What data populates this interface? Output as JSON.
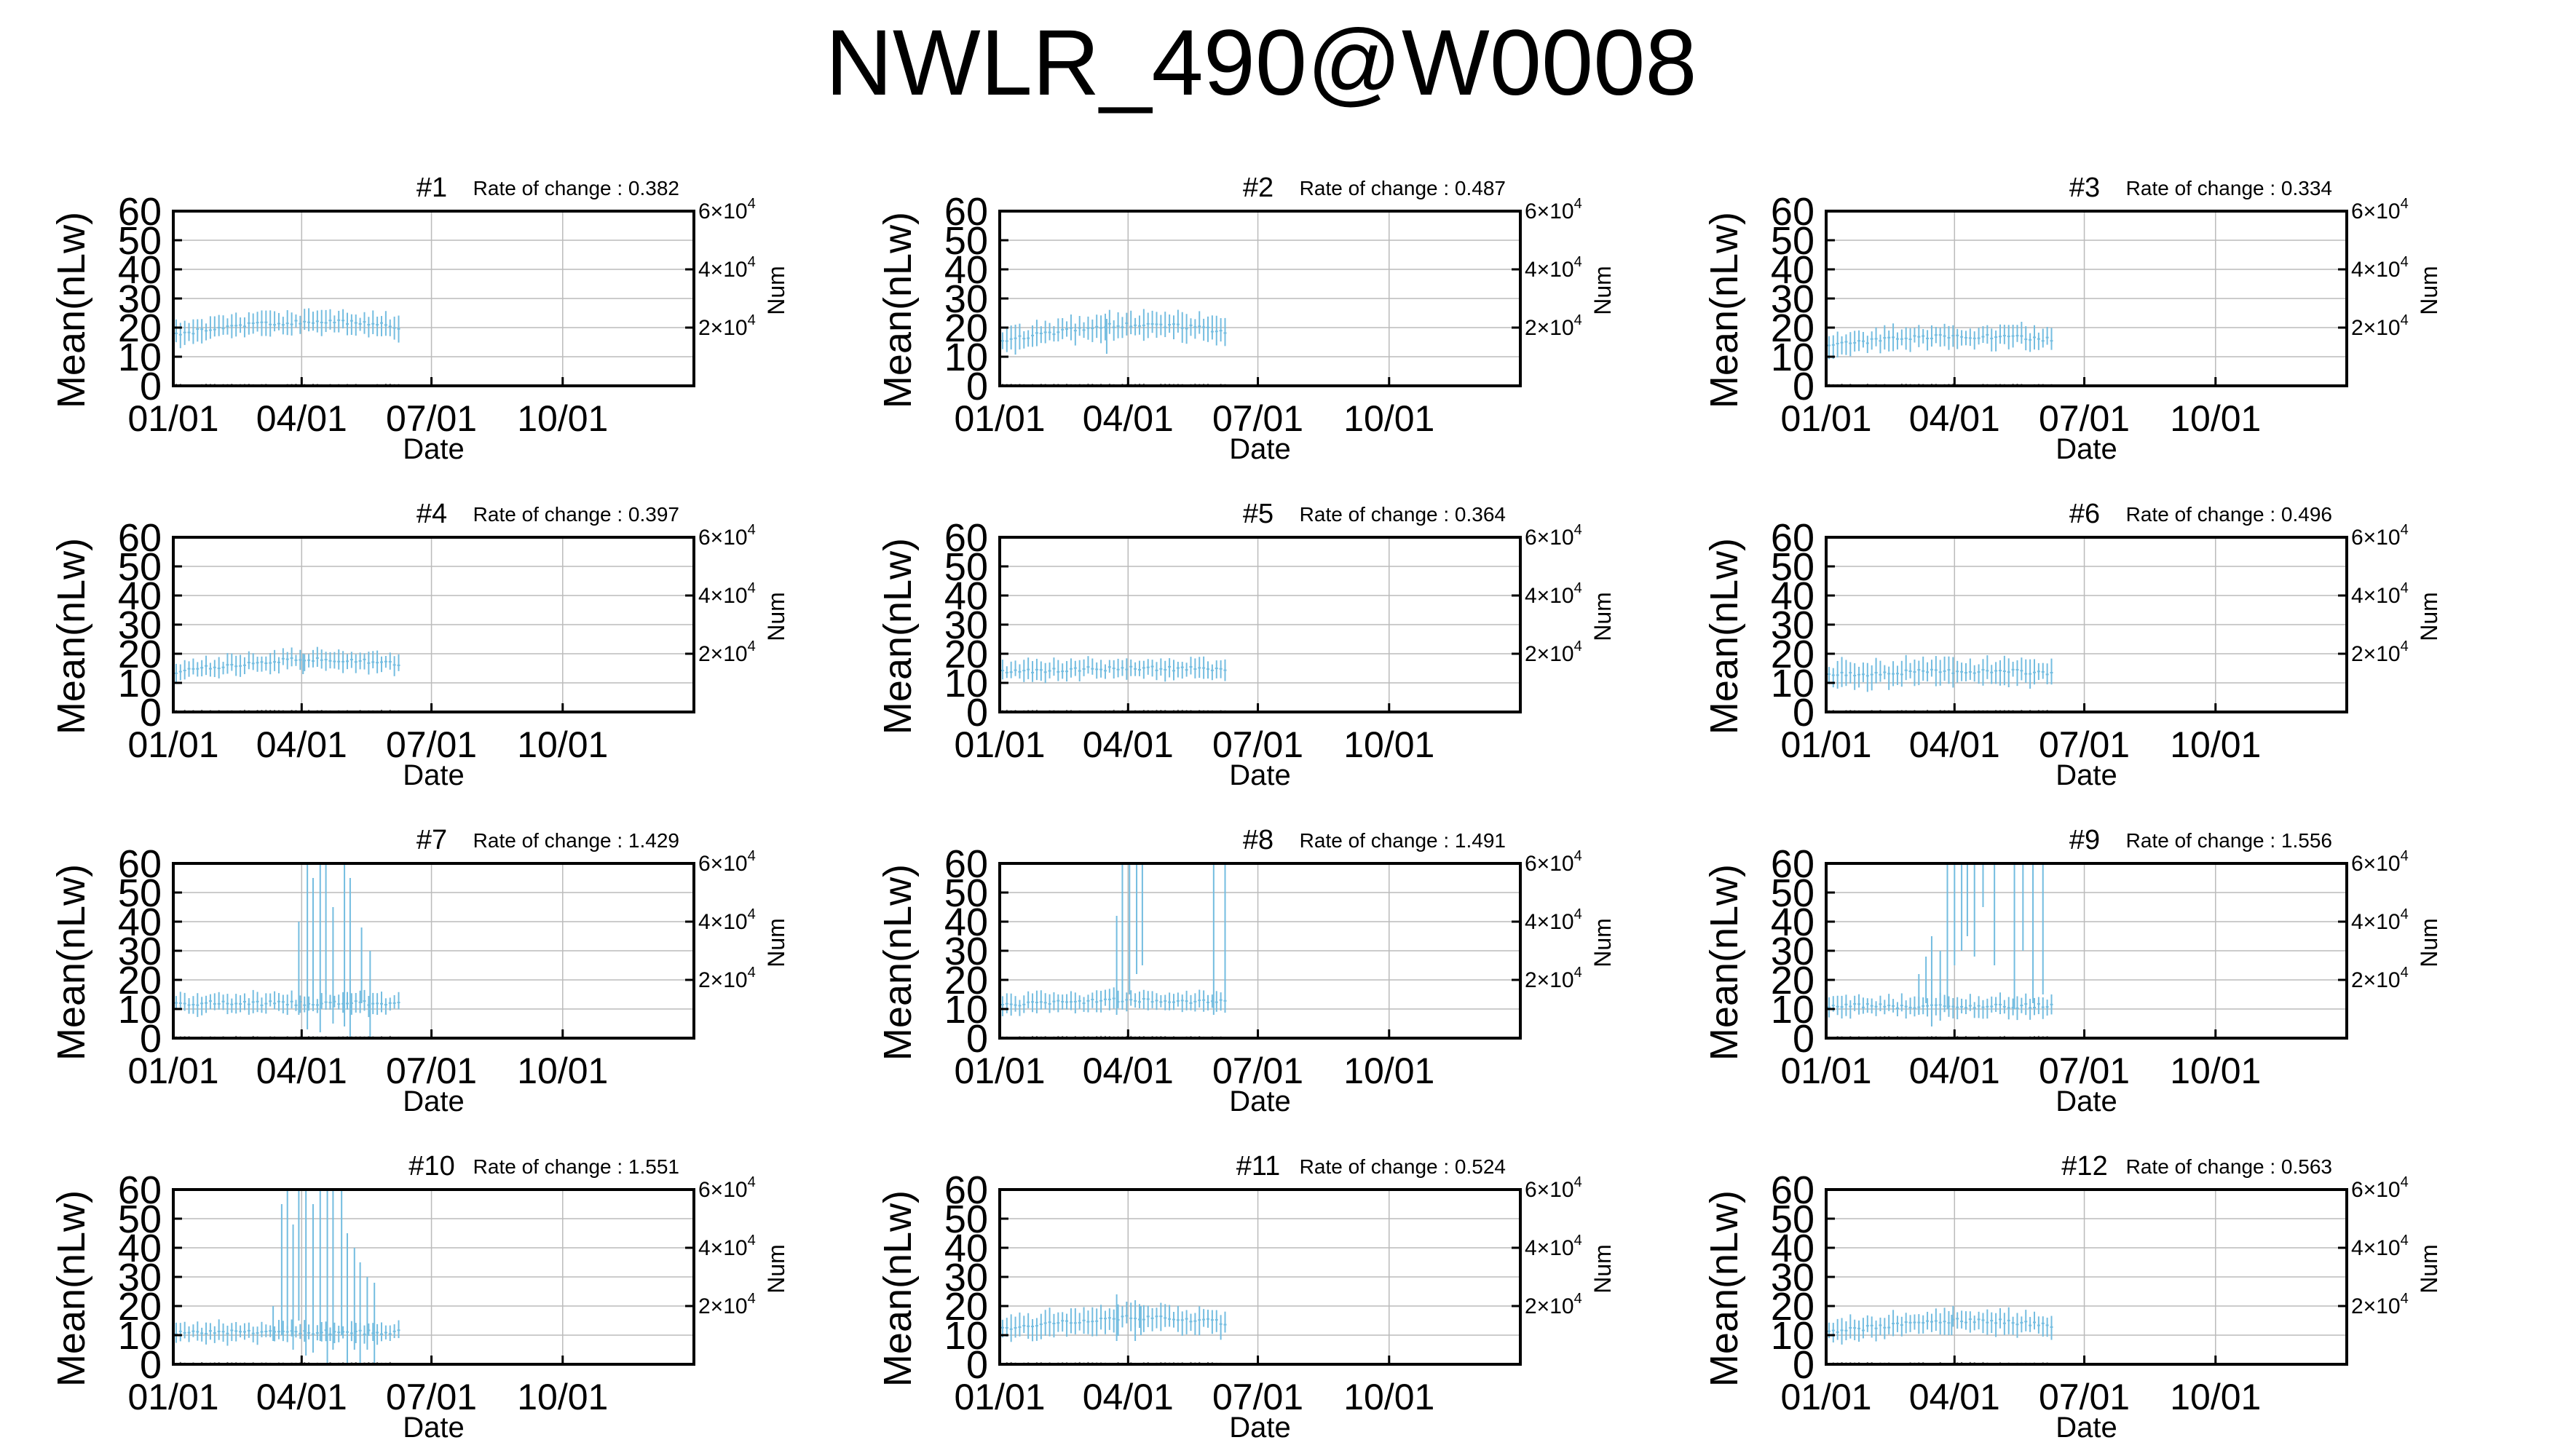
{
  "title": "NWLR_490@W0008",
  "colors": {
    "data": "#74bde0",
    "grid": "#bbbbbb",
    "frame": "#000000",
    "count": "#777777"
  },
  "chart_data": {
    "type": "errorbar",
    "grid": true,
    "xlabel": "Date",
    "ylabel": "Mean(nLw)",
    "ylabel2": "Num",
    "ylim": [
      0,
      60
    ],
    "yticks": [
      "0",
      "10",
      "20",
      "30",
      "40",
      "50",
      "60"
    ],
    "xticks": [
      "01/01",
      "04/01",
      "07/01",
      "10/01"
    ],
    "xtick_days": [
      0,
      90,
      181,
      273
    ],
    "xlim_days": [
      0,
      365
    ],
    "right_ticks": [
      {
        "base": "2×10",
        "exp": "4",
        "value": 20000
      },
      {
        "base": "4×10",
        "exp": "4",
        "value": 40000
      },
      {
        "base": "6×10",
        "exp": "4",
        "value": 60000
      }
    ],
    "right_ylim": [
      0,
      60000
    ],
    "rate_label": "Rate of change : ",
    "panels": [
      {
        "title": "#1",
        "rate": "0.382",
        "mean": 19,
        "spread": 3.5,
        "bump": 3,
        "outliers": [],
        "seed": 1
      },
      {
        "title": "#2",
        "rate": "0.487",
        "mean": 17,
        "spread": 4,
        "bump": 4,
        "outliers": [
          [
            75,
            23,
            11
          ]
        ],
        "seed": 2
      },
      {
        "title": "#3",
        "rate": "0.334",
        "mean": 15,
        "spread": 3.5,
        "bump": 2,
        "outliers": [],
        "seed": 3
      },
      {
        "title": "#4",
        "rate": "0.397",
        "mean": 15,
        "spread": 3,
        "bump": 3,
        "outliers": [
          [
            91,
            20,
            13
          ]
        ],
        "seed": 4
      },
      {
        "title": "#5",
        "rate": "0.364",
        "mean": 14,
        "spread": 3,
        "bump": 1,
        "outliers": [],
        "seed": 5
      },
      {
        "title": "#6",
        "rate": "0.496",
        "mean": 13,
        "spread": 4,
        "bump": 1,
        "outliers": [
          [
            35,
            18,
            10
          ]
        ],
        "seed": 6
      },
      {
        "title": "#7",
        "rate": "1.429",
        "mean": 12,
        "spread": 3,
        "bump": 0,
        "outliers": [
          [
            88,
            40,
            8
          ],
          [
            94,
            60,
            3
          ],
          [
            98,
            55,
            10
          ],
          [
            103,
            60,
            2
          ],
          [
            107,
            60,
            15
          ],
          [
            112,
            45,
            5
          ],
          [
            120,
            60,
            4
          ],
          [
            124,
            55,
            0
          ],
          [
            132,
            38,
            12
          ],
          [
            138,
            30,
            0
          ]
        ],
        "seed": 7
      },
      {
        "title": "#8",
        "rate": "1.491",
        "mean": 12,
        "spread": 3,
        "bump": 1,
        "outliers": [
          [
            82,
            42,
            8
          ],
          [
            86,
            60,
            10
          ],
          [
            91,
            60,
            15
          ],
          [
            96,
            60,
            22
          ],
          [
            100,
            60,
            25
          ],
          [
            150,
            60,
            8
          ],
          [
            158,
            60,
            15
          ]
        ],
        "seed": 8
      },
      {
        "title": "#9",
        "rate": "1.556",
        "mean": 11,
        "spread": 3,
        "bump": 0,
        "outliers": [
          [
            65,
            22,
            8
          ],
          [
            70,
            28,
            12
          ],
          [
            74,
            35,
            4
          ],
          [
            80,
            30,
            6
          ],
          [
            85,
            60,
            10
          ],
          [
            90,
            60,
            25
          ],
          [
            95,
            60,
            30
          ],
          [
            99,
            60,
            35
          ],
          [
            104,
            60,
            28
          ],
          [
            110,
            60,
            45
          ],
          [
            118,
            60,
            25
          ],
          [
            132,
            60,
            10
          ],
          [
            138,
            60,
            30
          ],
          [
            145,
            60,
            12
          ],
          [
            152,
            60,
            15
          ]
        ],
        "seed": 9
      },
      {
        "title": "#10",
        "rate": "1.551",
        "mean": 11,
        "spread": 3,
        "bump": 0,
        "outliers": [
          [
            70,
            20,
            8
          ],
          [
            76,
            55,
            10
          ],
          [
            80,
            60,
            12
          ],
          [
            84,
            48,
            5
          ],
          [
            88,
            60,
            15
          ],
          [
            93,
            60,
            3
          ],
          [
            98,
            55,
            4
          ],
          [
            103,
            60,
            8
          ],
          [
            108,
            60,
            0
          ],
          [
            112,
            60,
            5
          ],
          [
            118,
            60,
            10
          ],
          [
            122,
            45,
            0
          ],
          [
            127,
            40,
            5
          ],
          [
            131,
            35,
            0
          ],
          [
            136,
            30,
            5
          ],
          [
            141,
            28,
            0
          ]
        ],
        "seed": 10
      },
      {
        "title": "#11",
        "rate": "0.524",
        "mean": 13,
        "spread": 4,
        "bump": 3,
        "outliers": [
          [
            82,
            24,
            8
          ],
          [
            95,
            22,
            8
          ],
          [
            99,
            20,
            10
          ]
        ],
        "seed": 11
      },
      {
        "title": "#12",
        "rate": "0.563",
        "mean": 12,
        "spread": 3.5,
        "bump": 3,
        "outliers": [
          [
            88,
            17,
            10
          ]
        ],
        "seed": 12
      }
    ]
  }
}
